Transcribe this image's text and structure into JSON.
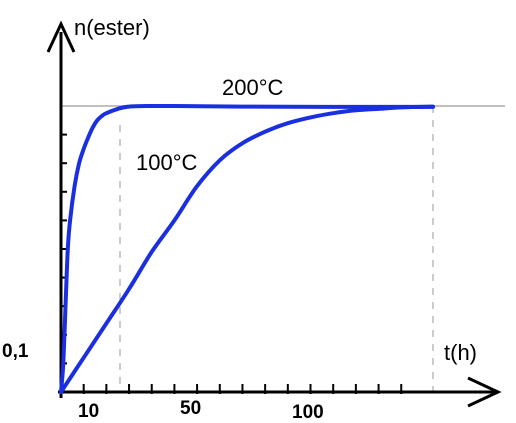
{
  "chart_data": {
    "type": "line",
    "ylabel": "n(ester)",
    "xlabel": "t(h)",
    "y_tick_labels": [
      "0,1"
    ],
    "x_tick_labels": [
      {
        "label": "10",
        "x": 10
      },
      {
        "label": "50",
        "x": 50
      },
      {
        "label": "100",
        "x": 100
      }
    ],
    "xlim": [
      0,
      164
    ],
    "ylim": [
      0,
      1
    ],
    "grid": false,
    "colors": {
      "series": "#1a2fe0",
      "axis": "#000000",
      "guide": "#9a9a9a"
    },
    "series": [
      {
        "name": "200°C",
        "x": [
          0,
          1,
          2,
          3,
          4,
          6,
          8,
          10,
          12,
          14,
          16,
          18,
          20,
          25,
          30,
          40,
          50,
          80,
          120,
          164
        ],
        "y": [
          0,
          0.1,
          0.3,
          0.5,
          0.6,
          0.72,
          0.8,
          0.85,
          0.89,
          0.925,
          0.95,
          0.965,
          0.975,
          0.99,
          0.998,
          1.0,
          1.0,
          0.998,
          0.997,
          0.997
        ]
      },
      {
        "name": "100°C",
        "x": [
          0,
          10,
          20,
          30,
          40,
          50,
          60,
          70,
          80,
          90,
          100,
          110,
          120,
          130,
          140,
          150,
          164
        ],
        "y": [
          0,
          0.12,
          0.24,
          0.36,
          0.49,
          0.6,
          0.72,
          0.81,
          0.87,
          0.91,
          0.94,
          0.96,
          0.975,
          0.985,
          0.99,
          0.995,
          0.998
        ]
      }
    ]
  }
}
